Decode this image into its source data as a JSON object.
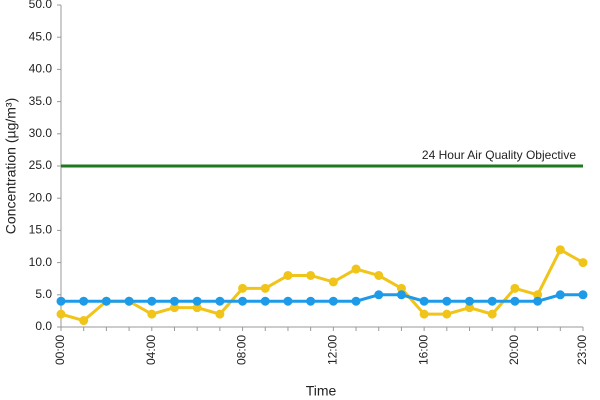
{
  "chart_data": {
    "type": "line",
    "y_label": "Concentration (µg/m³)",
    "x_label": "Time",
    "categories": [
      "00:00",
      null,
      null,
      null,
      "04:00",
      null,
      null,
      null,
      "08:00",
      null,
      null,
      null,
      "12:00",
      null,
      null,
      null,
      "16:00",
      null,
      null,
      null,
      "20:00",
      null,
      null,
      "23:00"
    ],
    "series": [
      {
        "color": "#f0c419",
        "values": [
          2,
          1,
          4,
          4,
          2,
          3,
          3,
          2,
          6,
          6,
          8,
          8,
          7,
          9,
          8,
          6,
          2,
          2,
          3,
          2,
          6,
          5,
          12,
          10
        ]
      },
      {
        "color": "#1e9be8",
        "values": [
          4,
          4,
          4,
          4,
          4,
          4,
          4,
          4,
          4,
          4,
          4,
          4,
          4,
          4,
          5,
          5,
          4,
          4,
          4,
          4,
          4,
          4,
          5,
          5
        ]
      }
    ],
    "objective": {
      "value": 25,
      "label": "24 Hour Air Quality Objective",
      "color": "#1f7a1f"
    },
    "ylim": [
      0,
      50
    ],
    "yticks": [
      {
        "value": 0,
        "label": "0.0"
      },
      {
        "value": 5,
        "label": "5.0"
      },
      {
        "value": 10,
        "label": "10.0"
      },
      {
        "value": 15,
        "label": "15.0"
      },
      {
        "value": 20,
        "label": "20.0"
      },
      {
        "value": 25,
        "label": "25.0"
      },
      {
        "value": 30,
        "label": "30.0"
      },
      {
        "value": 35,
        "label": "35.0"
      },
      {
        "value": 40,
        "label": "40.0"
      },
      {
        "value": 45,
        "label": "45.0"
      },
      {
        "value": 50,
        "label": "50.0"
      }
    ],
    "grid": false
  }
}
